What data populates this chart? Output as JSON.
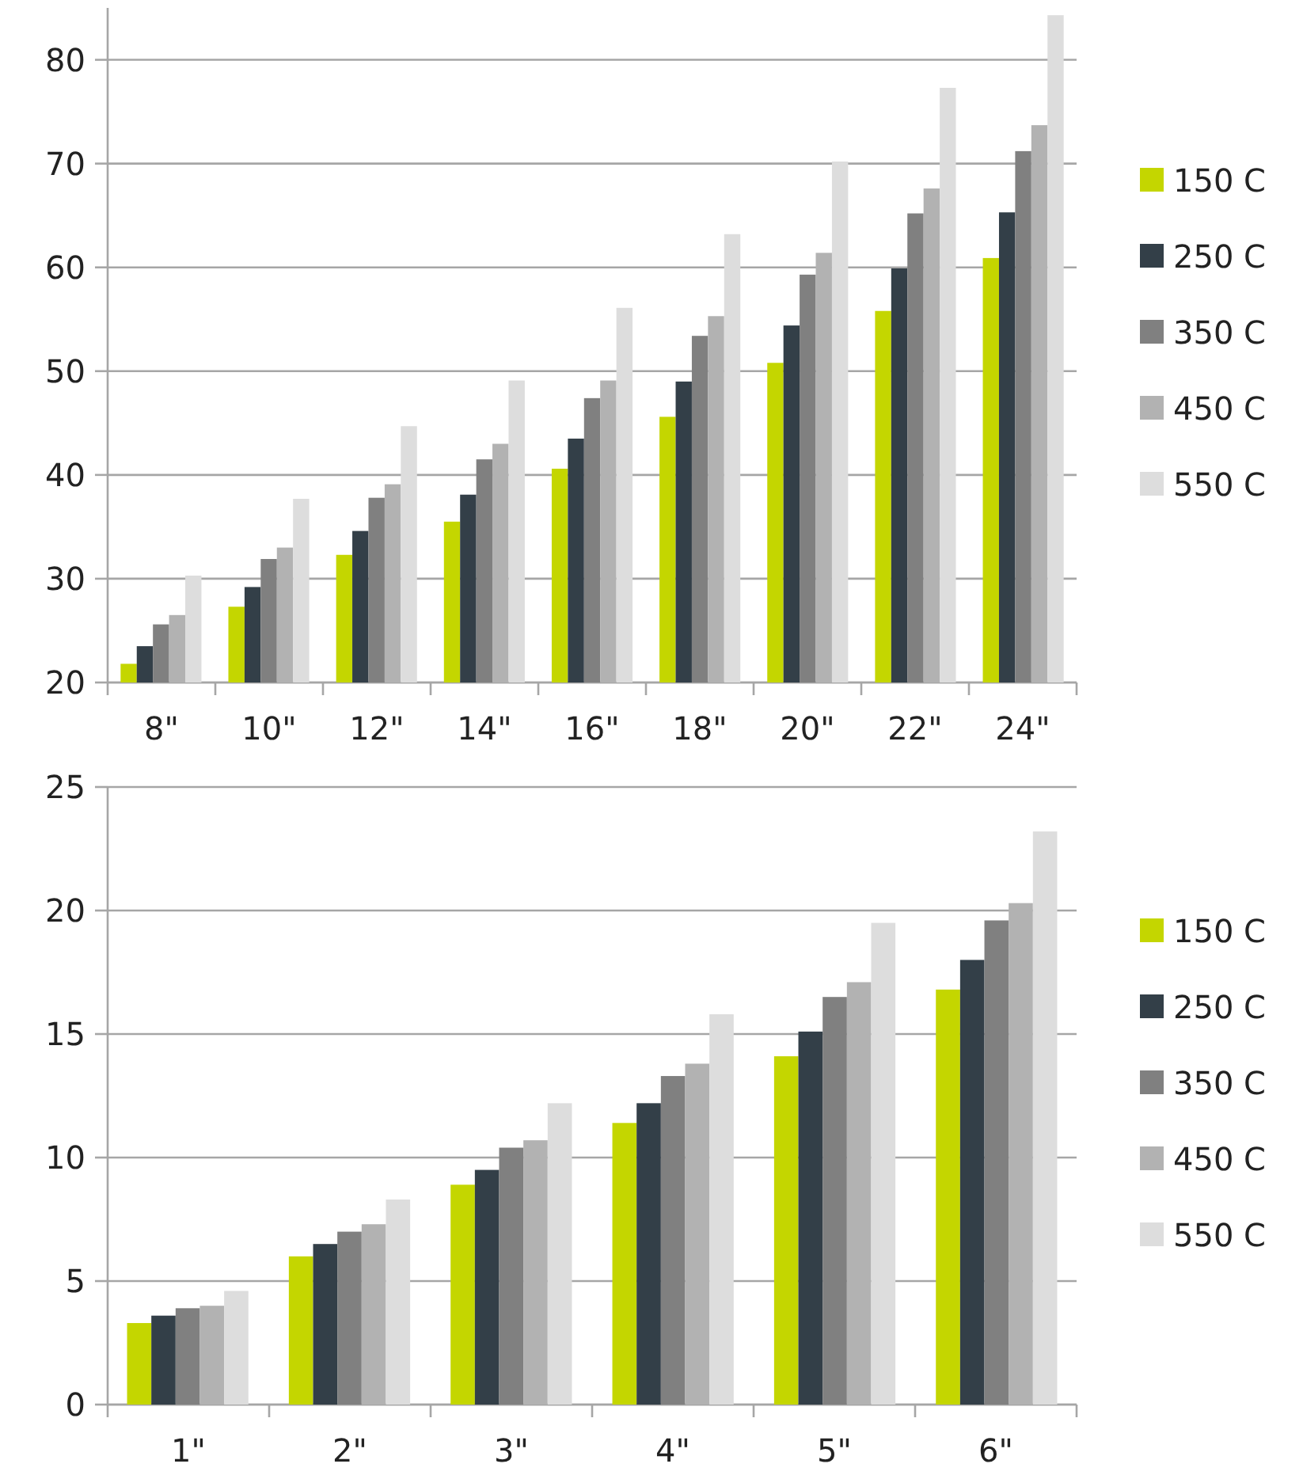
{
  "chart_data": [
    {
      "type": "bar",
      "categories": [
        "8\"",
        "10\"",
        "12\"",
        "14\"",
        "16\"",
        "18\"",
        "20\"",
        "22\"",
        "24\""
      ],
      "ylim": [
        20,
        85
      ],
      "yticks": [
        20,
        30,
        40,
        50,
        60,
        70,
        80
      ],
      "grid": "y",
      "legend": "right",
      "series": [
        {
          "name": "150 C",
          "color": "#c4d600",
          "values": [
            21.8,
            27.3,
            32.3,
            35.5,
            40.6,
            45.6,
            50.8,
            55.8,
            60.9
          ]
        },
        {
          "name": "250 C",
          "color": "#333f48",
          "values": [
            23.5,
            29.2,
            34.6,
            38.1,
            43.5,
            49.0,
            54.4,
            59.9,
            65.3
          ]
        },
        {
          "name": "350 C",
          "color": "#808080",
          "values": [
            25.6,
            31.9,
            37.8,
            41.5,
            47.4,
            53.4,
            59.3,
            65.2,
            71.2
          ]
        },
        {
          "name": "450 C",
          "color": "#b2b2b2",
          "values": [
            26.5,
            33.0,
            39.1,
            43.0,
            49.1,
            55.3,
            61.4,
            67.6,
            73.7
          ]
        },
        {
          "name": "550 C",
          "color": "#dddddd",
          "values": [
            30.3,
            37.7,
            44.7,
            49.1,
            56.1,
            63.2,
            70.2,
            77.3,
            84.3
          ]
        }
      ]
    },
    {
      "type": "bar",
      "categories": [
        "1\"",
        "2\"",
        "3\"",
        "4\"",
        "5\"",
        "6\""
      ],
      "ylim": [
        0,
        25
      ],
      "yticks": [
        0,
        5,
        10,
        15,
        20,
        25
      ],
      "grid": "y",
      "legend": "right",
      "series": [
        {
          "name": "150 C",
          "color": "#c4d600",
          "values": [
            3.3,
            6.0,
            8.9,
            11.4,
            14.1,
            16.8
          ]
        },
        {
          "name": "250 C",
          "color": "#333f48",
          "values": [
            3.6,
            6.5,
            9.5,
            12.2,
            15.1,
            18.0
          ]
        },
        {
          "name": "350 C",
          "color": "#808080",
          "values": [
            3.9,
            7.0,
            10.4,
            13.3,
            16.5,
            19.6
          ]
        },
        {
          "name": "450 C",
          "color": "#b2b2b2",
          "values": [
            4.0,
            7.3,
            10.7,
            13.8,
            17.1,
            20.3
          ]
        },
        {
          "name": "550 C",
          "color": "#dddddd",
          "values": [
            4.6,
            8.3,
            12.2,
            15.8,
            19.5,
            23.2
          ]
        }
      ]
    }
  ]
}
